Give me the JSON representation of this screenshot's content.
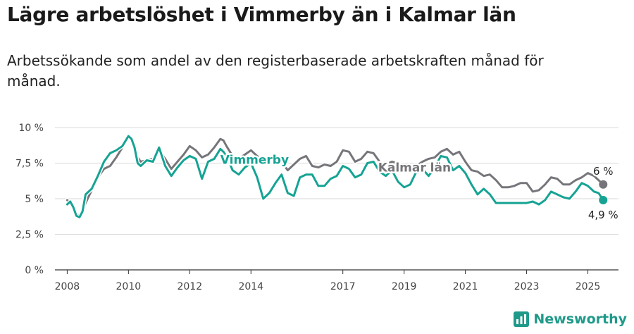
{
  "header": {
    "title": "Lägre arbetslöshet i Vimmerby än i Kalmar län",
    "subtitle": "Arbetssökande som andel av den registerbaserade arbetskraften månad för månad."
  },
  "brand": {
    "name": "Newsworthy",
    "icon": "bar-chart-icon",
    "color": "#1f9a8a"
  },
  "colors": {
    "vimmerby": "#16a394",
    "kalmar": "#76757a",
    "grid": "#d9d9d9",
    "axis": "#333333"
  },
  "chart_data": {
    "type": "line",
    "title": "Lägre arbetslöshet i Vimmerby än i Kalmar län",
    "xlabel": "",
    "ylabel": "",
    "ylim": [
      0,
      10
    ],
    "xlim": [
      2007.6,
      2026.0
    ],
    "grid": true,
    "y_ticks": [
      {
        "value": 0,
        "label": "0 %"
      },
      {
        "value": 2.5,
        "label": "2,5 %"
      },
      {
        "value": 5,
        "label": "5 %"
      },
      {
        "value": 7.5,
        "label": "7,5 %"
      },
      {
        "value": 10,
        "label": "10 %"
      }
    ],
    "x_ticks": [
      {
        "value": 2008,
        "label": "2008"
      },
      {
        "value": 2010,
        "label": "2010"
      },
      {
        "value": 2012,
        "label": "2012"
      },
      {
        "value": 2014,
        "label": "2014"
      },
      {
        "value": 2017,
        "label": "2017"
      },
      {
        "value": 2019,
        "label": "2019"
      },
      {
        "value": 2021,
        "label": "2021"
      },
      {
        "value": 2023,
        "label": "2023"
      },
      {
        "value": 2025,
        "label": "2025"
      }
    ],
    "series": [
      {
        "name": "Kalmar län",
        "color": "#76757a",
        "end_label": "6 %",
        "x": [
          2008.0,
          2008.1,
          2008.2,
          2008.3,
          2008.4,
          2008.5,
          2008.6,
          2008.8,
          2009.0,
          2009.2,
          2009.4,
          2009.6,
          2009.8,
          2010.0,
          2010.1,
          2010.2,
          2010.3,
          2010.4,
          2010.6,
          2010.8,
          2011.0,
          2011.2,
          2011.4,
          2011.6,
          2011.8,
          2012.0,
          2012.2,
          2012.4,
          2012.6,
          2012.8,
          2013.0,
          2013.1,
          2013.2,
          2013.4,
          2013.6,
          2013.8,
          2014.0,
          2014.2,
          2014.4,
          2014.6,
          2014.8,
          2015.0,
          2015.2,
          2015.4,
          2015.6,
          2015.8,
          2016.0,
          2016.2,
          2016.4,
          2016.6,
          2016.8,
          2017.0,
          2017.2,
          2017.4,
          2017.6,
          2017.8,
          2018.0,
          2018.2,
          2018.4,
          2018.6,
          2018.8,
          2019.0,
          2019.2,
          2019.4,
          2019.6,
          2019.8,
          2020.0,
          2020.2,
          2020.4,
          2020.6,
          2020.8,
          2021.0,
          2021.2,
          2021.4,
          2021.6,
          2021.8,
          2022.0,
          2022.2,
          2022.4,
          2022.6,
          2022.8,
          2023.0,
          2023.2,
          2023.4,
          2023.6,
          2023.8,
          2024.0,
          2024.2,
          2024.4,
          2024.6,
          2024.8,
          2025.0,
          2025.2,
          2025.35,
          2025.5
        ],
        "values": [
          4.9,
          4.7,
          4.3,
          3.9,
          3.8,
          4.2,
          4.7,
          5.6,
          6.5,
          7.1,
          7.3,
          7.9,
          8.6,
          9.4,
          9.2,
          8.6,
          7.9,
          7.6,
          7.7,
          7.8,
          8.4,
          7.8,
          7.1,
          7.6,
          8.1,
          8.7,
          8.4,
          7.9,
          8.1,
          8.6,
          9.2,
          9.1,
          8.7,
          8.0,
          7.8,
          8.1,
          8.4,
          8.0,
          7.6,
          7.8,
          8.1,
          7.6,
          7.0,
          7.4,
          7.8,
          8.0,
          7.3,
          7.2,
          7.4,
          7.3,
          7.6,
          8.4,
          8.3,
          7.6,
          7.8,
          8.3,
          8.2,
          7.6,
          7.4,
          7.6,
          7.5,
          7.1,
          6.9,
          7.3,
          7.6,
          7.8,
          7.9,
          8.3,
          8.5,
          8.1,
          8.3,
          7.6,
          7.0,
          6.9,
          6.6,
          6.7,
          6.3,
          5.8,
          5.8,
          5.9,
          6.1,
          6.1,
          5.5,
          5.6,
          6.0,
          6.5,
          6.4,
          6.0,
          6.0,
          6.3,
          6.5,
          6.8,
          6.6,
          6.3,
          6.0
        ]
      },
      {
        "name": "Vimmerby",
        "color": "#16a394",
        "end_label": "4,9 %",
        "x": [
          2008.0,
          2008.1,
          2008.2,
          2008.3,
          2008.4,
          2008.5,
          2008.6,
          2008.8,
          2009.0,
          2009.2,
          2009.4,
          2009.6,
          2009.8,
          2010.0,
          2010.1,
          2010.2,
          2010.3,
          2010.4,
          2010.6,
          2010.8,
          2011.0,
          2011.2,
          2011.4,
          2011.6,
          2011.8,
          2012.0,
          2012.2,
          2012.4,
          2012.6,
          2012.8,
          2013.0,
          2013.1,
          2013.2,
          2013.4,
          2013.6,
          2013.8,
          2014.0,
          2014.2,
          2014.4,
          2014.6,
          2014.8,
          2015.0,
          2015.2,
          2015.4,
          2015.6,
          2015.8,
          2016.0,
          2016.2,
          2016.4,
          2016.6,
          2016.8,
          2017.0,
          2017.2,
          2017.4,
          2017.6,
          2017.8,
          2018.0,
          2018.2,
          2018.4,
          2018.6,
          2018.8,
          2019.0,
          2019.2,
          2019.4,
          2019.6,
          2019.8,
          2020.0,
          2020.2,
          2020.4,
          2020.6,
          2020.8,
          2021.0,
          2021.2,
          2021.4,
          2021.6,
          2021.8,
          2022.0,
          2022.2,
          2022.4,
          2022.6,
          2022.8,
          2023.0,
          2023.2,
          2023.4,
          2023.6,
          2023.8,
          2024.0,
          2024.2,
          2024.4,
          2024.6,
          2024.8,
          2025.0,
          2025.2,
          2025.35,
          2025.5
        ],
        "values": [
          4.6,
          4.8,
          4.4,
          3.8,
          3.7,
          4.1,
          5.3,
          5.7,
          6.6,
          7.6,
          8.2,
          8.4,
          8.7,
          9.4,
          9.2,
          8.6,
          7.5,
          7.3,
          7.7,
          7.6,
          8.6,
          7.3,
          6.6,
          7.2,
          7.7,
          8.0,
          7.8,
          6.4,
          7.6,
          7.8,
          8.5,
          8.3,
          8.0,
          7.0,
          6.7,
          7.2,
          7.5,
          6.5,
          5.0,
          5.4,
          6.1,
          6.7,
          5.4,
          5.2,
          6.5,
          6.7,
          6.7,
          5.9,
          5.9,
          6.4,
          6.6,
          7.3,
          7.1,
          6.5,
          6.7,
          7.5,
          7.6,
          6.9,
          6.6,
          7.0,
          6.2,
          5.8,
          6.0,
          6.9,
          7.1,
          6.6,
          7.2,
          8.0,
          7.9,
          7.0,
          7.3,
          6.8,
          6.0,
          5.3,
          5.7,
          5.3,
          4.7,
          4.7,
          4.7,
          4.7,
          4.7,
          4.7,
          4.8,
          4.6,
          4.9,
          5.5,
          5.3,
          5.1,
          5.0,
          5.5,
          6.1,
          5.9,
          5.5,
          5.4,
          4.9
        ]
      }
    ]
  }
}
